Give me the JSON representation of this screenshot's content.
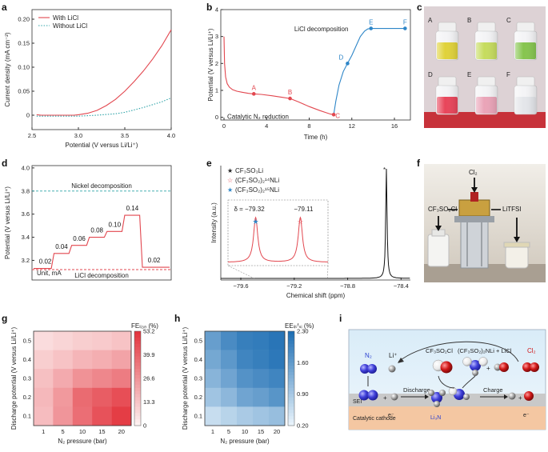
{
  "panel_labels": [
    "a",
    "b",
    "c",
    "d",
    "e",
    "f",
    "g",
    "h",
    "i"
  ],
  "chart_data": [
    {
      "id": "a",
      "type": "line",
      "xlabel": "Potential (V versus Li/Li⁺)",
      "ylabel": "Current density (mA cm⁻²)",
      "xlim": [
        2.5,
        4.0
      ],
      "ylim": [
        -0.03,
        0.22
      ],
      "xticks": [
        2.5,
        3.0,
        3.5,
        4.0
      ],
      "yticks": [
        0,
        0.05,
        0.1,
        0.15,
        0.2
      ],
      "xtick_labels": [
        "2.5",
        "3.0",
        "3.5",
        "4.0"
      ],
      "ytick_labels": [
        "0",
        "0.05",
        "0.10",
        "0.15",
        "0.20"
      ],
      "legend": "top-left",
      "series": [
        {
          "name": "With LiCl",
          "color": "#e2474f",
          "style": "solid",
          "x": [
            2.55,
            2.6,
            2.8,
            2.95,
            3.0,
            3.1,
            3.2,
            3.3,
            3.4,
            3.5,
            3.6,
            3.7,
            3.8,
            3.9,
            4.0
          ],
          "y": [
            0.001,
            0.0,
            0.0,
            0.0,
            0.001,
            0.004,
            0.01,
            0.02,
            0.033,
            0.05,
            0.07,
            0.092,
            0.117,
            0.145,
            0.178
          ]
        },
        {
          "name": "Without LiCl",
          "color": "#2fa3a8",
          "style": "dotted",
          "x": [
            2.55,
            2.6,
            2.8,
            3.0,
            3.2,
            3.4,
            3.5,
            3.6,
            3.7,
            3.8,
            3.9,
            4.0
          ],
          "y": [
            -0.002,
            -0.002,
            -0.002,
            -0.002,
            0.0,
            0.003,
            0.006,
            0.011,
            0.016,
            0.022,
            0.028,
            0.036
          ]
        }
      ]
    },
    {
      "id": "b",
      "type": "line",
      "xlabel": "Time (h)",
      "ylabel": "Potential (V versus Li/Li⁺)",
      "xlim": [
        -0.3,
        17.5
      ],
      "ylim": [
        -0.1,
        4.0
      ],
      "xticks": [
        0,
        4,
        8,
        12,
        16
      ],
      "yticks": [
        0,
        1,
        2,
        3,
        4
      ],
      "xtick_labels": [
        "0",
        "4",
        "8",
        "12",
        "16"
      ],
      "ytick_labels": [
        "0",
        "1",
        "2",
        "3",
        "4"
      ],
      "series": [
        {
          "name": "",
          "color": "#e2474f",
          "x": [
            0.0,
            0.05,
            0.15,
            0.3,
            0.5,
            0.8,
            1.2,
            1.7,
            2.3,
            2.8,
            3.5,
            4.5,
            5.5,
            6.2,
            7.0,
            8.0,
            9.0,
            9.6,
            10.0,
            10.3
          ],
          "y": [
            3.0,
            2.0,
            1.5,
            1.25,
            1.12,
            1.03,
            0.97,
            0.93,
            0.89,
            0.87,
            0.85,
            0.8,
            0.74,
            0.7,
            0.57,
            0.4,
            0.25,
            0.17,
            0.12,
            0.1
          ]
        },
        {
          "name": "",
          "color": "#2e86c8",
          "x": [
            10.3,
            10.5,
            10.8,
            11.2,
            11.6,
            12.0,
            12.4,
            12.8,
            13.2,
            13.5,
            13.8,
            14.5,
            15.5,
            16.5,
            17.0
          ],
          "y": [
            0.1,
            0.6,
            1.2,
            1.7,
            2.0,
            2.3,
            2.65,
            3.0,
            3.2,
            3.28,
            3.3,
            3.3,
            3.3,
            3.3,
            3.3
          ]
        }
      ],
      "points": [
        {
          "label": "A",
          "x": 2.8,
          "y": 0.87,
          "color": "#e2474f"
        },
        {
          "label": "B",
          "x": 6.2,
          "y": 0.7,
          "color": "#e2474f"
        },
        {
          "label": "C",
          "x": 10.3,
          "y": 0.1,
          "color": "#e2474f"
        },
        {
          "label": "D",
          "x": 11.6,
          "y": 2.0,
          "color": "#2e86c8"
        },
        {
          "label": "E",
          "x": 13.8,
          "y": 3.3,
          "color": "#2e86c8"
        },
        {
          "label": "F",
          "x": 17.0,
          "y": 3.3,
          "color": "#2e86c8"
        }
      ],
      "annotations": [
        {
          "text": "LiCl decomposition",
          "x": 6.6,
          "y": 3.2,
          "color": "#2e86c8"
        },
        {
          "text": "Catalytic N₂ reduction",
          "x": 0.3,
          "y": -0.05,
          "color": "#e2474f"
        }
      ]
    },
    {
      "id": "d",
      "type": "line",
      "ylabel": "Potential (V versus Li/Li⁺)",
      "ylim": [
        3.03,
        4.02
      ],
      "yticks": [
        3.2,
        3.4,
        3.6,
        3.8,
        4.0
      ],
      "ytick_labels": [
        "3.2",
        "3.4",
        "3.6",
        "3.8",
        "4.0"
      ],
      "xlim": [
        0,
        100
      ],
      "series": [
        {
          "name": "",
          "color": "#e2474f",
          "x": [
            0,
            13,
            15,
            26,
            28,
            39,
            41,
            52,
            54,
            65,
            67,
            78,
            80,
            100
          ],
          "y": [
            3.13,
            3.13,
            3.26,
            3.26,
            3.33,
            3.33,
            3.4,
            3.4,
            3.45,
            3.45,
            3.59,
            3.59,
            3.14,
            3.14
          ]
        }
      ],
      "step_labels": [
        {
          "text": "0.02",
          "x": 4,
          "y": 3.15
        },
        {
          "text": "0.04",
          "x": 16,
          "y": 3.28
        },
        {
          "text": "0.06",
          "x": 29,
          "y": 3.35
        },
        {
          "text": "0.08",
          "x": 42,
          "y": 3.42
        },
        {
          "text": "0.10",
          "x": 55,
          "y": 3.47
        },
        {
          "text": "0.14",
          "x": 68,
          "y": 3.61
        },
        {
          "text": "0.02",
          "x": 84,
          "y": 3.16
        }
      ],
      "hlines": [
        {
          "y": 3.8,
          "color": "#2fa3a8",
          "label": "Nickel decomposition"
        },
        {
          "y": 3.12,
          "color": "#e2474f",
          "label": "LiCl decomposition"
        }
      ],
      "unit_text": "Unit, mA"
    },
    {
      "id": "e",
      "type": "line",
      "xlabel": "Chemical shift (ppm)",
      "ylabel": "Intensity (a.u.)",
      "xlim": [
        -79.75,
        -78.33
      ],
      "ylim": [
        0,
        1
      ],
      "xticks": [
        -79.6,
        -79.2,
        -78.8,
        -78.4
      ],
      "xtick_labels": [
        "−79.6",
        "−79.2",
        "−78.8",
        "−78.4"
      ],
      "legend_title": "",
      "legend": [
        {
          "marker": "★",
          "color": "#222222",
          "text": "CF₃SO₃Li"
        },
        {
          "marker": "☆",
          "color": "#e2474f",
          "text": "(CF₃SO₂)₂¹⁴NLi"
        },
        {
          "marker": "★",
          "color": "#2e86c8",
          "text": "(CF₃SO₂)₂¹⁵NLi"
        }
      ],
      "main_peak": {
        "x": -78.51,
        "label": "*"
      },
      "inset_peaks": [
        {
          "x": -79.32,
          "label": "δ = −79.32",
          "marker": "★",
          "color": "#2e86c8"
        },
        {
          "x": -79.11,
          "label": "−79.11",
          "marker": "☆",
          "color": "#e2474f"
        }
      ]
    },
    {
      "id": "g",
      "type": "heatmap",
      "xlabel": "N₂ pressure (bar)",
      "ylabel": "Discharge potential (V versus Li/Li⁺)",
      "x": [
        "1",
        "5",
        "10",
        "15",
        "20"
      ],
      "y": [
        "0.5",
        "0.4",
        "0.3",
        "0.2",
        "0.1"
      ],
      "colorbar_title": "FEₗᵢ₃ₙ (%)",
      "colorbar_ticks": [
        "53.2",
        "39.9",
        "26.6",
        "13.3",
        "0"
      ],
      "vmin": 0,
      "vmax": 53.2,
      "colors": [
        "#fdf1f1",
        "#e3353e"
      ],
      "values": [
        [
          6,
          8,
          10,
          11,
          13
        ],
        [
          10,
          13,
          17,
          19,
          22
        ],
        [
          14,
          20,
          27,
          30,
          33
        ],
        [
          16,
          25,
          38,
          42,
          46
        ],
        [
          15,
          26,
          37,
          45,
          51
        ]
      ]
    },
    {
      "id": "h",
      "type": "heatmap",
      "xlabel": "N₂ pressure (bar)",
      "ylabel": "Discharge potential (V versus Li/Li⁺)",
      "x": [
        "1",
        "5",
        "10",
        "15",
        "20"
      ],
      "y": [
        "0.5",
        "0.4",
        "0.3",
        "0.2",
        "0.1"
      ],
      "colorbar_title": "EEₗᵢₜᶠₛᵢ (%)",
      "colorbar_ticks": [
        "2.30",
        "1.60",
        "0.90",
        "0.20"
      ],
      "vmin": 0.2,
      "vmax": 2.3,
      "colors": [
        "#e8f3fb",
        "#1f6fb4"
      ],
      "values": [
        [
          1.55,
          1.85,
          2.05,
          2.1,
          2.2
        ],
        [
          1.4,
          1.65,
          1.95,
          2.05,
          2.15
        ],
        [
          1.2,
          1.45,
          1.75,
          1.85,
          1.95
        ],
        [
          0.95,
          1.15,
          1.45,
          1.55,
          1.7
        ],
        [
          0.55,
          0.7,
          0.85,
          0.95,
          1.05
        ]
      ]
    }
  ],
  "photo_c": {
    "vials": [
      {
        "label": "A",
        "color": "#e0d23a"
      },
      {
        "label": "B",
        "color": "#c6dc5e"
      },
      {
        "label": "C",
        "color": "#86c54f"
      },
      {
        "label": "D",
        "color": "#e8455a"
      },
      {
        "label": "E",
        "color": "#eaa4b8"
      },
      {
        "label": "F",
        "color": "#e4e6ea"
      }
    ]
  },
  "photo_f": {
    "labels": {
      "left": "CF₃SO₂Cl",
      "top": "Cl₂",
      "right": "LiTFSI"
    }
  },
  "scheme_i": {
    "labels": {
      "n2": "N₂",
      "li_plus": "Li⁺",
      "sei": "SEI",
      "discharge": "Discharge",
      "cathode": "Catalytic cathode",
      "e_minus_left": "e⁻",
      "li3n": "Li₃N",
      "cf3so2cl": "CF₃SO₂Cl",
      "product": "(CF₃SO₂)₂NLi + LiCl",
      "charge": "Charge",
      "e_minus_right": "e⁻",
      "cl2": "Cl₂"
    },
    "plus": "+"
  }
}
